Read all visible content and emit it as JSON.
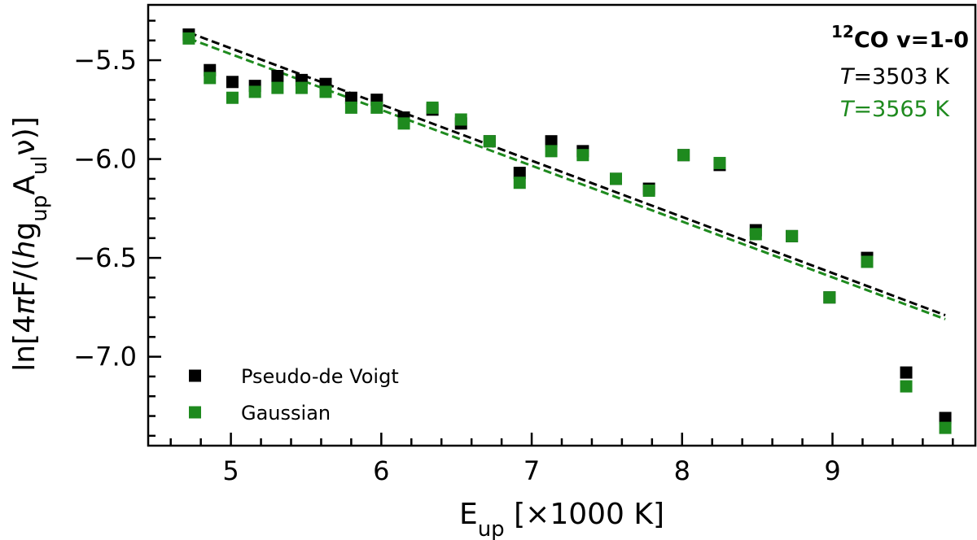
{
  "chart_data": {
    "type": "scatter",
    "title": "",
    "xlabel": "E_up [×1000 K]",
    "ylabel": "ln[4πF/(hg_up A_ul ν)]",
    "xlim": [
      4.45,
      9.95
    ],
    "ylim": [
      -7.45,
      -5.22
    ],
    "xticks": [
      5,
      6,
      7,
      8,
      9
    ],
    "xtick_labels": [
      "5",
      "6",
      "7",
      "8",
      "9"
    ],
    "yticks": [
      -5.5,
      -6.0,
      -6.5,
      -7.0
    ],
    "ytick_labels": [
      "−5.5",
      "−6.0",
      "−6.5",
      "−7.0"
    ],
    "grid": false,
    "legend_position": "bottom-left",
    "annotation": {
      "species_sup": "12",
      "species": "CO v=1-0",
      "temps": [
        {
          "prefix": "T",
          "value": "=3503 K",
          "color": "#000000"
        },
        {
          "prefix": "T",
          "value": "=3565 K",
          "color": "#1e8a1e"
        }
      ]
    },
    "series": [
      {
        "name": "Pseudo-de Voigt",
        "color": "#000000",
        "x": [
          4.72,
          4.86,
          5.01,
          5.16,
          5.31,
          5.47,
          5.63,
          5.8,
          5.97,
          6.15,
          6.34,
          6.53,
          6.72,
          6.92,
          7.13,
          7.34,
          7.56,
          7.78,
          8.01,
          8.25,
          8.49,
          8.73,
          8.98,
          9.23,
          9.49,
          9.75
        ],
        "y": [
          -5.37,
          -5.55,
          -5.61,
          -5.63,
          -5.58,
          -5.6,
          -5.62,
          -5.69,
          -5.7,
          -5.79,
          -5.75,
          -5.82,
          -5.91,
          -6.07,
          -5.91,
          -5.96,
          -6.1,
          -6.15,
          -5.98,
          -6.03,
          -6.36,
          -6.39,
          -6.7,
          -6.5,
          -7.08,
          -7.31
        ],
        "fit": {
          "x": [
            4.72,
            9.75
          ],
          "y": [
            -5.36,
            -6.79
          ]
        }
      },
      {
        "name": "Gaussian",
        "color": "#1e8a1e",
        "x": [
          4.72,
          4.86,
          5.01,
          5.16,
          5.31,
          5.47,
          5.63,
          5.8,
          5.97,
          6.15,
          6.34,
          6.53,
          6.72,
          6.92,
          7.13,
          7.34,
          7.56,
          7.78,
          8.01,
          8.25,
          8.49,
          8.73,
          8.98,
          9.23,
          9.49,
          9.75
        ],
        "y": [
          -5.39,
          -5.59,
          -5.69,
          -5.66,
          -5.64,
          -5.64,
          -5.66,
          -5.74,
          -5.74,
          -5.82,
          -5.74,
          -5.8,
          -5.91,
          -6.12,
          -5.96,
          -5.98,
          -6.1,
          -6.16,
          -5.98,
          -6.02,
          -6.38,
          -6.39,
          -6.7,
          -6.52,
          -7.15,
          -7.36
        ],
        "fit": {
          "x": [
            4.72,
            9.75
          ],
          "y": [
            -5.39,
            -6.81
          ]
        }
      }
    ]
  }
}
